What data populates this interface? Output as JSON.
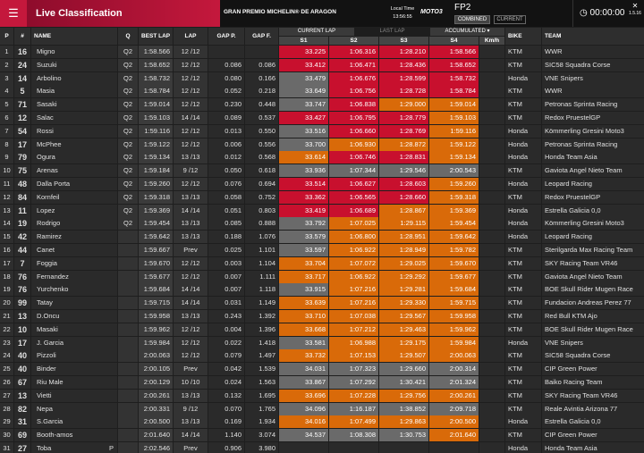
{
  "header": {
    "title": "Live Classification",
    "event": "GRAN PREMIO MICHELIN® DE ARAGON",
    "local_time_label": "Local Time",
    "local_time": "13:56:55",
    "logo": "MOTO3",
    "session": "FP2",
    "toggle_combined": "COMBINED",
    "toggle_current": "CURRENT",
    "timer": "00:00:00",
    "corner_label": "1.5.16",
    "menu_icon": "hamburger-icon",
    "clock_icon": "clock-icon",
    "expand_icon": "expand-icon"
  },
  "columns": {
    "p": "P",
    "num": "#",
    "name": "NAME",
    "q": "Q",
    "best_lap": "BEST LAP",
    "lap": "LAP",
    "gap_p": "GAP P.",
    "gap_f": "GAP F.",
    "s1": "S1",
    "s2": "S2",
    "s3": "S3",
    "s4": "S4",
    "speed": "Km/h",
    "bike": "BIKE",
    "team": "TEAM"
  },
  "lap_tabs": {
    "current": "CURRENT LAP",
    "last": "LAST LAP",
    "accumulated": "ACCUMULATED"
  },
  "colors": {
    "red": "#c8102e",
    "orange": "#d96a09",
    "grey": "#6a6a6a",
    "accent": "#c4183c"
  },
  "rows": [
    {
      "p": "1",
      "num": "16",
      "name": "Migno",
      "q": "Q2",
      "best": "1:58.566",
      "lap": "12 /12",
      "gp": "",
      "gf": "",
      "s1": "33.225",
      "s2": "1:06.316",
      "s3": "1:28.210",
      "s4": "1:58.566",
      "k": "rrrr",
      "bike": "KTM",
      "team": "WWR"
    },
    {
      "p": "2",
      "num": "24",
      "name": "Suzuki",
      "q": "Q2",
      "best": "1:58.652",
      "lap": "12 /12",
      "gp": "0.086",
      "gf": "0.086",
      "s1": "33.412",
      "s2": "1:06.471",
      "s3": "1:28.436",
      "s4": "1:58.652",
      "k": "rrrr",
      "bike": "KTM",
      "team": "SIC58 Squadra Corse"
    },
    {
      "p": "3",
      "num": "14",
      "name": "Arbolino",
      "q": "Q2",
      "best": "1:58.732",
      "lap": "12 /12",
      "gp": "0.080",
      "gf": "0.166",
      "s1": "33.479",
      "s2": "1:06.676",
      "s3": "1:28.599",
      "s4": "1:58.732",
      "k": "grrr",
      "bike": "Honda",
      "team": "VNE Snipers"
    },
    {
      "p": "4",
      "num": "5",
      "name": "Masia",
      "q": "Q2",
      "best": "1:58.784",
      "lap": "12 /12",
      "gp": "0.052",
      "gf": "0.218",
      "s1": "33.649",
      "s2": "1:06.756",
      "s3": "1:28.728",
      "s4": "1:58.784",
      "k": "grrr",
      "bike": "KTM",
      "team": "WWR"
    },
    {
      "p": "5",
      "num": "71",
      "name": "Sasaki",
      "q": "Q2",
      "best": "1:59.014",
      "lap": "12 /12",
      "gp": "0.230",
      "gf": "0.448",
      "s1": "33.747",
      "s2": "1:06.838",
      "s3": "1:29.000",
      "s4": "1:59.014",
      "k": "groo",
      "bike": "KTM",
      "team": "Petronas Sprinta Racing"
    },
    {
      "p": "6",
      "num": "12",
      "name": "Salac",
      "q": "Q2",
      "best": "1:59.103",
      "lap": "14 /14",
      "gp": "0.089",
      "gf": "0.537",
      "s1": "33.427",
      "s2": "1:06.795",
      "s3": "1:28.779",
      "s4": "1:59.103",
      "k": "rrro",
      "bike": "KTM",
      "team": "Redox PruestelGP"
    },
    {
      "p": "7",
      "num": "54",
      "name": "Rossi",
      "q": "Q2",
      "best": "1:59.116",
      "lap": "12 /12",
      "gp": "0.013",
      "gf": "0.550",
      "s1": "33.516",
      "s2": "1:06.660",
      "s3": "1:28.769",
      "s4": "1:59.116",
      "k": "grro",
      "bike": "Honda",
      "team": "Kömmerling Gresini Moto3"
    },
    {
      "p": "8",
      "num": "17",
      "name": "McPhee",
      "q": "Q2",
      "best": "1:59.122",
      "lap": "12 /12",
      "gp": "0.006",
      "gf": "0.556",
      "s1": "33.700",
      "s2": "1:06.930",
      "s3": "1:28.872",
      "s4": "1:59.122",
      "k": "gooo",
      "bike": "Honda",
      "team": "Petronas Sprinta Racing"
    },
    {
      "p": "9",
      "num": "79",
      "name": "Ogura",
      "q": "Q2",
      "best": "1:59.134",
      "lap": "13 /13",
      "gp": "0.012",
      "gf": "0.568",
      "s1": "33.614",
      "s2": "1:06.746",
      "s3": "1:28.831",
      "s4": "1:59.134",
      "k": "orro",
      "bike": "Honda",
      "team": "Honda Team Asia"
    },
    {
      "p": "10",
      "num": "75",
      "name": "Arenas",
      "q": "Q2",
      "best": "1:59.184",
      "lap": "9 /12",
      "gp": "0.050",
      "gf": "0.618",
      "s1": "33.936",
      "s2": "1:07.344",
      "s3": "1:29.546",
      "s4": "2:00.543",
      "k": "gggg",
      "bike": "KTM",
      "team": "Gaviota Angel Nieto Team"
    },
    {
      "p": "11",
      "num": "48",
      "name": "Dalla Porta",
      "q": "Q2",
      "best": "1:59.260",
      "lap": "12 /12",
      "gp": "0.076",
      "gf": "0.694",
      "s1": "33.514",
      "s2": "1:06.627",
      "s3": "1:28.603",
      "s4": "1:59.260",
      "k": "rrro",
      "bike": "Honda",
      "team": "Leopard Racing"
    },
    {
      "p": "12",
      "num": "84",
      "name": "Kornfeil",
      "q": "Q2",
      "best": "1:59.318",
      "lap": "13 /13",
      "gp": "0.058",
      "gf": "0.752",
      "s1": "33.362",
      "s2": "1:06.565",
      "s3": "1:28.660",
      "s4": "1:59.318",
      "k": "rrro",
      "bike": "KTM",
      "team": "Redox PruestelGP"
    },
    {
      "p": "13",
      "num": "11",
      "name": "Lopez",
      "q": "Q2",
      "best": "1:59.369",
      "lap": "14 /14",
      "gp": "0.051",
      "gf": "0.803",
      "s1": "33.419",
      "s2": "1:06.689",
      "s3": "1:28.867",
      "s4": "1:59.369",
      "k": "rroo",
      "bike": "Honda",
      "team": "Estrella Galicia 0,0"
    },
    {
      "p": "14",
      "num": "19",
      "name": "Rodrigo",
      "q": "Q2",
      "best": "1:59.454",
      "lap": "13 /13",
      "gp": "0.085",
      "gf": "0.888",
      "s1": "33.792",
      "s2": "1:07.025",
      "s3": "1:29.115",
      "s4": "1:59.454",
      "k": "gooo",
      "bike": "Honda",
      "team": "Kömmerling Gresini Moto3"
    },
    {
      "p": "15",
      "num": "42",
      "name": "Ramirez",
      "q": "",
      "best": "1:59.642",
      "lap": "13 /13",
      "gp": "0.188",
      "gf": "1.076",
      "s1": "33.579",
      "s2": "1:06.800",
      "s3": "1:28.951",
      "s4": "1:59.642",
      "k": "gooo",
      "bike": "Honda",
      "team": "Leopard Racing"
    },
    {
      "p": "16",
      "num": "44",
      "name": "Canet",
      "q": "",
      "best": "1:59.667",
      "lap": "Prev",
      "gp": "0.025",
      "gf": "1.101",
      "s1": "33.597",
      "s2": "1:06.922",
      "s3": "1:28.949",
      "s4": "1:59.782",
      "k": "gooo",
      "bike": "KTM",
      "team": "Sterilgarda Max Racing Team"
    },
    {
      "p": "17",
      "num": "7",
      "name": "Foggia",
      "q": "",
      "best": "1:59.670",
      "lap": "12 /12",
      "gp": "0.003",
      "gf": "1.104",
      "s1": "33.704",
      "s2": "1:07.072",
      "s3": "1:29.025",
      "s4": "1:59.670",
      "k": "oooo",
      "bike": "KTM",
      "team": "SKY Racing Team VR46"
    },
    {
      "p": "18",
      "num": "76",
      "name": "Fernandez",
      "q": "",
      "best": "1:59.677",
      "lap": "12 /12",
      "gp": "0.007",
      "gf": "1.111",
      "s1": "33.717",
      "s2": "1:06.922",
      "s3": "1:29.292",
      "s4": "1:59.677",
      "k": "oooo",
      "bike": "KTM",
      "team": "Gaviota Angel Nieto Team"
    },
    {
      "p": "19",
      "num": "76",
      "name": "Yurchenko",
      "q": "",
      "best": "1:59.684",
      "lap": "14 /14",
      "gp": "0.007",
      "gf": "1.118",
      "s1": "33.915",
      "s2": "1:07.216",
      "s3": "1:29.281",
      "s4": "1:59.684",
      "k": "gooo",
      "bike": "KTM",
      "team": "BOE Skull Rider Mugen Race"
    },
    {
      "p": "20",
      "num": "99",
      "name": "Tatay",
      "q": "",
      "best": "1:59.715",
      "lap": "14 /14",
      "gp": "0.031",
      "gf": "1.149",
      "s1": "33.639",
      "s2": "1:07.216",
      "s3": "1:29.330",
      "s4": "1:59.715",
      "k": "oooo",
      "bike": "KTM",
      "team": "Fundacion Andreas Perez 77"
    },
    {
      "p": "21",
      "num": "13",
      "name": "D.Oncu",
      "q": "",
      "best": "1:59.958",
      "lap": "13 /13",
      "gp": "0.243",
      "gf": "1.392",
      "s1": "33.710",
      "s2": "1:07.038",
      "s3": "1:29.567",
      "s4": "1:59.958",
      "k": "oooo",
      "bike": "KTM",
      "team": "Red Bull KTM Ajo"
    },
    {
      "p": "22",
      "num": "10",
      "name": "Masaki",
      "q": "",
      "best": "1:59.962",
      "lap": "12 /12",
      "gp": "0.004",
      "gf": "1.396",
      "s1": "33.668",
      "s2": "1:07.212",
      "s3": "1:29.463",
      "s4": "1:59.962",
      "k": "oooo",
      "bike": "KTM",
      "team": "BOE Skull Rider Mugen Race"
    },
    {
      "p": "23",
      "num": "17",
      "name": "J. Garcia",
      "q": "",
      "best": "1:59.984",
      "lap": "12 /12",
      "gp": "0.022",
      "gf": "1.418",
      "s1": "33.581",
      "s2": "1:06.988",
      "s3": "1:29.175",
      "s4": "1:59.984",
      "k": "gooo",
      "bike": "Honda",
      "team": "VNE Snipers"
    },
    {
      "p": "24",
      "num": "40",
      "name": "Pizzoli",
      "q": "",
      "best": "2:00.063",
      "lap": "12 /12",
      "gp": "0.079",
      "gf": "1.497",
      "s1": "33.732",
      "s2": "1:07.153",
      "s3": "1:29.507",
      "s4": "2:00.063",
      "k": "oooo",
      "bike": "KTM",
      "team": "SIC58 Squadra Corse"
    },
    {
      "p": "25",
      "num": "40",
      "name": "Binder",
      "q": "",
      "best": "2:00.105",
      "lap": "Prev",
      "gp": "0.042",
      "gf": "1.539",
      "s1": "34.031",
      "s2": "1:07.323",
      "s3": "1:29.660",
      "s4": "2:00.314",
      "k": "gggg",
      "bike": "KTM",
      "team": "CIP Green Power"
    },
    {
      "p": "26",
      "num": "67",
      "name": "Riu Male",
      "q": "",
      "best": "2:00.129",
      "lap": "10 /10",
      "gp": "0.024",
      "gf": "1.563",
      "s1": "33.867",
      "s2": "1:07.292",
      "s3": "1:30.421",
      "s4": "2:01.324",
      "k": "gggg",
      "bike": "KTM",
      "team": "Baiko Racing Team"
    },
    {
      "p": "27",
      "num": "13",
      "name": "Vietti",
      "q": "",
      "best": "2:00.261",
      "lap": "13 /13",
      "gp": "0.132",
      "gf": "1.695",
      "s1": "33.696",
      "s2": "1:07.228",
      "s3": "1:29.756",
      "s4": "2:00.261",
      "k": "oooo",
      "bike": "KTM",
      "team": "SKY Racing Team VR46"
    },
    {
      "p": "28",
      "num": "82",
      "name": "Nepa",
      "q": "",
      "best": "2:00.331",
      "lap": "9 /12",
      "gp": "0.070",
      "gf": "1.765",
      "s1": "34.096",
      "s2": "1:16.187",
      "s3": "1:38.852",
      "s4": "2:09.718",
      "k": "gggg",
      "bike": "KTM",
      "team": "Reale Avintia Arizona 77"
    },
    {
      "p": "29",
      "num": "31",
      "name": "S.Garcia",
      "q": "",
      "best": "2:00.500",
      "lap": "13 /13",
      "gp": "0.169",
      "gf": "1.934",
      "s1": "34.016",
      "s2": "1:07.499",
      "s3": "1:29.863",
      "s4": "2:00.500",
      "k": "oooo",
      "bike": "Honda",
      "team": "Estrella Galicia 0,0"
    },
    {
      "p": "30",
      "num": "69",
      "name": "Booth-amos",
      "q": "",
      "best": "2:01.640",
      "lap": "14 /14",
      "gp": "1.140",
      "gf": "3.074",
      "s1": "34.537",
      "s2": "1:08.308",
      "s3": "1:30.753",
      "s4": "2:01.640",
      "k": "gggo",
      "bike": "KTM",
      "team": "CIP Green Power"
    },
    {
      "p": "31",
      "num": "27",
      "name": "Toba",
      "flag": "P",
      "q": "",
      "best": "2:02.546",
      "lap": "Prev",
      "gp": "0.906",
      "gf": "3.980",
      "s1": "",
      "s2": "",
      "s3": "",
      "s4": "",
      "k": "    ",
      "bike": "Honda",
      "team": "Honda Team Asia"
    }
  ]
}
